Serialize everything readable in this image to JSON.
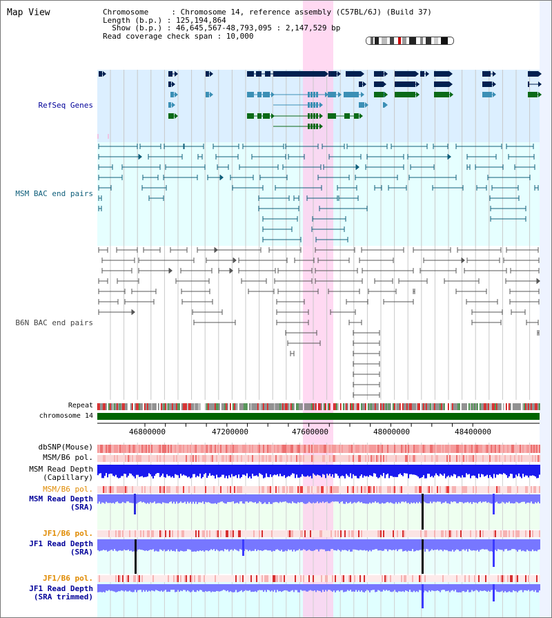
{
  "title": "Map View",
  "info": {
    "line1": "Chromosome     : Chromosome 14, reference assembly (C57BL/6J) (Build 37)",
    "line2": "Length (b.p.) : 125,194,864",
    "line3": "  Show (b.p.) : 46,645,567-48,793,095 : 2,147,529 bp",
    "line4": "Read coverage check span : 10,000"
  },
  "tracks": {
    "refseq": "RefSeq Genes",
    "msm_bac": "MSM BAC end pairs",
    "b6n_bac": "B6N BAC end pairs",
    "repeat": "Repeat",
    "chrom": "chromosome 14",
    "dbsnp": "dbSNP(Mouse)",
    "msm_pol": "MSM/B6 pol.",
    "msm_cap_1": "MSM Read Depth",
    "msm_cap_2": "(Capillary)",
    "msm_pol2": "MSM/B6 pol.",
    "msm_sra_1": "MSM Read Depth",
    "msm_sra_2": "(SRA)",
    "jf1_pol": "JF1/B6 pol.",
    "jf1_sra_1": "JF1 Read Depth",
    "jf1_sra_2": "(SRA)",
    "jf1_pol2": "JF1/B6 pol.",
    "jf1_trim_1": "JF1 Read Depth",
    "jf1_trim_2": "(SRA trimmed)"
  },
  "axis_ticks": [
    "46800000",
    "47200000",
    "47600000",
    "48000000",
    "48400000"
  ],
  "colors": {
    "refseq_bg": "#dcefff",
    "msm_bg": "#e6ffff",
    "highlight": "#ffccee",
    "gene_navy": "#002050",
    "gene_teal": "#3b8fb5",
    "gene_green": "#0a6a16",
    "msm_line": "#0e5e7a",
    "b6n_line": "#555555",
    "chrom_bar": "#006400",
    "depth_blue": "#1a1aee",
    "depth_light": "#7777ff",
    "label_blue": "#000099",
    "label_orange": "#e08a00"
  }
}
